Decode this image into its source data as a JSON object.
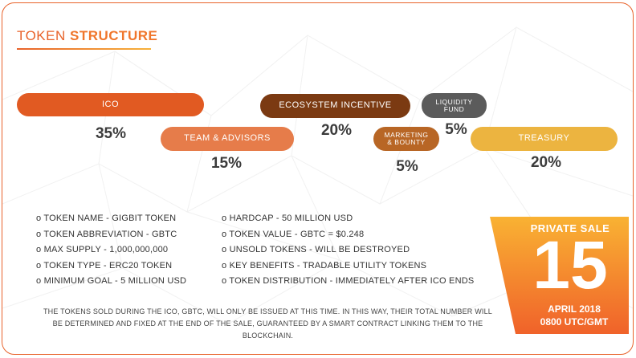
{
  "title": {
    "part1": "TOKEN",
    "part2": "STRUCTURE"
  },
  "distribution": [
    {
      "label": "ICO",
      "percent": "35%",
      "color": "#e15a22"
    },
    {
      "label": "TEAM & ADVISORS",
      "percent": "15%",
      "color": "#e67c4a"
    },
    {
      "label": "ECOSYSTEM INCENTIVE",
      "percent": "20%",
      "color": "#7b3a12"
    },
    {
      "label_line1": "MARKETING",
      "label_line2": "& BOUNTY",
      "percent": "5%",
      "color": "#b86625"
    },
    {
      "label_line1": "LIQUIDITY",
      "label_line2": "FUND",
      "percent": "5%",
      "color": "#5b5b5b"
    },
    {
      "label": "TREASURY",
      "percent": "20%",
      "color": "#ecb440"
    }
  ],
  "details_left": [
    "TOKEN NAME - GIGBIT TOKEN",
    "TOKEN ABBREVIATION - GBTC",
    "MAX SUPPLY - 1,000,000,000",
    "TOKEN TYPE - ERC20 TOKEN",
    "MINIMUM GOAL - 5 MILLION USD"
  ],
  "details_right": [
    "HARDCAP - 50 MILLION USD",
    "TOKEN VALUE - GBTC = $0.248",
    "UNSOLD TOKENS - WILL BE DESTROYED",
    "KEY BENEFITS - TRADABLE UTILITY TOKENS",
    "TOKEN DISTRIBUTION - IMMEDIATELY AFTER ICO ENDS"
  ],
  "bullet_glyph": "o",
  "note": "THE TOKENS SOLD DURING THE ICO, GBTC, WILL ONLY BE ISSUED AT THIS TIME. IN THIS WAY, THEIR TOTAL NUMBER WILL BE DETERMINED AND FIXED AT THE END OF THE SALE, GUARANTEED BY A SMART CONTRACT LINKING THEM TO THE BLOCKCHAIN.",
  "private_sale": {
    "heading": "PRIVATE SALE",
    "day": "15",
    "month_year": "APRIL 2018",
    "time": "0800 UTC/GMT",
    "gradient_top": "#f9b233",
    "gradient_bottom": "#f0622a"
  }
}
